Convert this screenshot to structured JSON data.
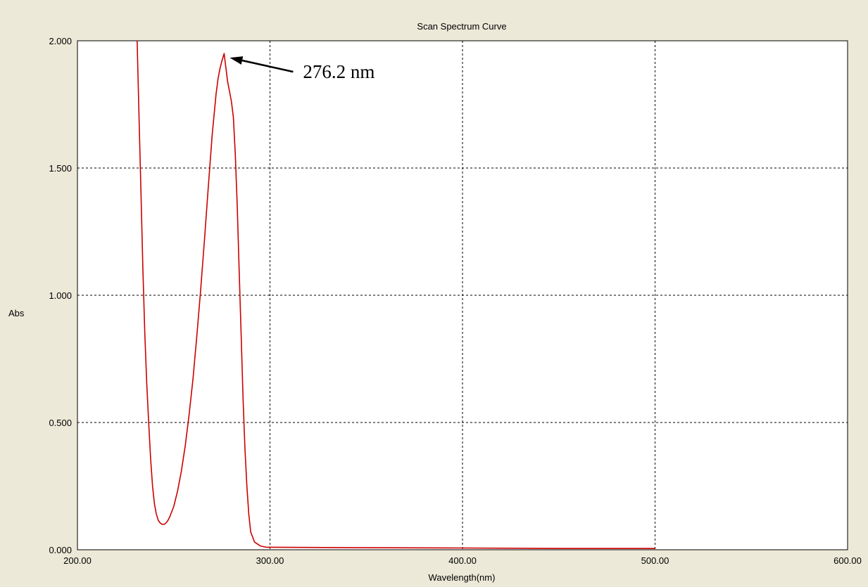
{
  "chart_data": {
    "type": "line",
    "title": "Scan Spectrum Curve",
    "xlabel": "Wavelength(nm)",
    "ylabel": "Abs",
    "xlim": [
      200,
      600
    ],
    "ylim": [
      0,
      2
    ],
    "x_ticks": [
      "200.00",
      "300.00",
      "400.00",
      "500.00",
      "600.00"
    ],
    "y_ticks": [
      "0.000",
      "0.500",
      "1.000",
      "1.500",
      "2.000"
    ],
    "grid": true,
    "series": [
      {
        "color": "#cc0000",
        "points": [
          [
            231,
            2.0
          ],
          [
            232,
            1.7
          ],
          [
            233,
            1.4
          ],
          [
            234,
            1.1
          ],
          [
            235,
            0.85
          ],
          [
            236,
            0.65
          ],
          [
            237,
            0.5
          ],
          [
            238,
            0.36
          ],
          [
            239,
            0.25
          ],
          [
            240,
            0.18
          ],
          [
            241,
            0.14
          ],
          [
            242,
            0.115
          ],
          [
            243,
            0.105
          ],
          [
            244,
            0.1
          ],
          [
            245,
            0.1
          ],
          [
            246,
            0.105
          ],
          [
            247,
            0.115
          ],
          [
            248,
            0.13
          ],
          [
            250,
            0.17
          ],
          [
            252,
            0.23
          ],
          [
            254,
            0.31
          ],
          [
            256,
            0.41
          ],
          [
            258,
            0.53
          ],
          [
            260,
            0.67
          ],
          [
            262,
            0.84
          ],
          [
            264,
            1.02
          ],
          [
            266,
            1.22
          ],
          [
            268,
            1.43
          ],
          [
            270,
            1.63
          ],
          [
            272,
            1.79
          ],
          [
            273,
            1.85
          ],
          [
            274,
            1.89
          ],
          [
            275,
            1.92
          ],
          [
            276.2,
            1.95
          ],
          [
            277,
            1.9
          ],
          [
            278,
            1.84
          ],
          [
            279,
            1.8
          ],
          [
            280,
            1.76
          ],
          [
            281,
            1.7
          ],
          [
            282,
            1.55
          ],
          [
            283,
            1.35
          ],
          [
            284,
            1.1
          ],
          [
            285,
            0.85
          ],
          [
            286,
            0.6
          ],
          [
            287,
            0.4
          ],
          [
            288,
            0.25
          ],
          [
            289,
            0.14
          ],
          [
            290,
            0.07
          ],
          [
            292,
            0.03
          ],
          [
            295,
            0.015
          ],
          [
            298,
            0.01
          ],
          [
            300,
            0.01
          ],
          [
            350,
            0.008
          ],
          [
            400,
            0.007
          ],
          [
            450,
            0.005
          ],
          [
            500,
            0.005
          ]
        ]
      }
    ],
    "annotation": {
      "text": "276.2 nm",
      "x": 276.2,
      "y": 1.95
    }
  }
}
